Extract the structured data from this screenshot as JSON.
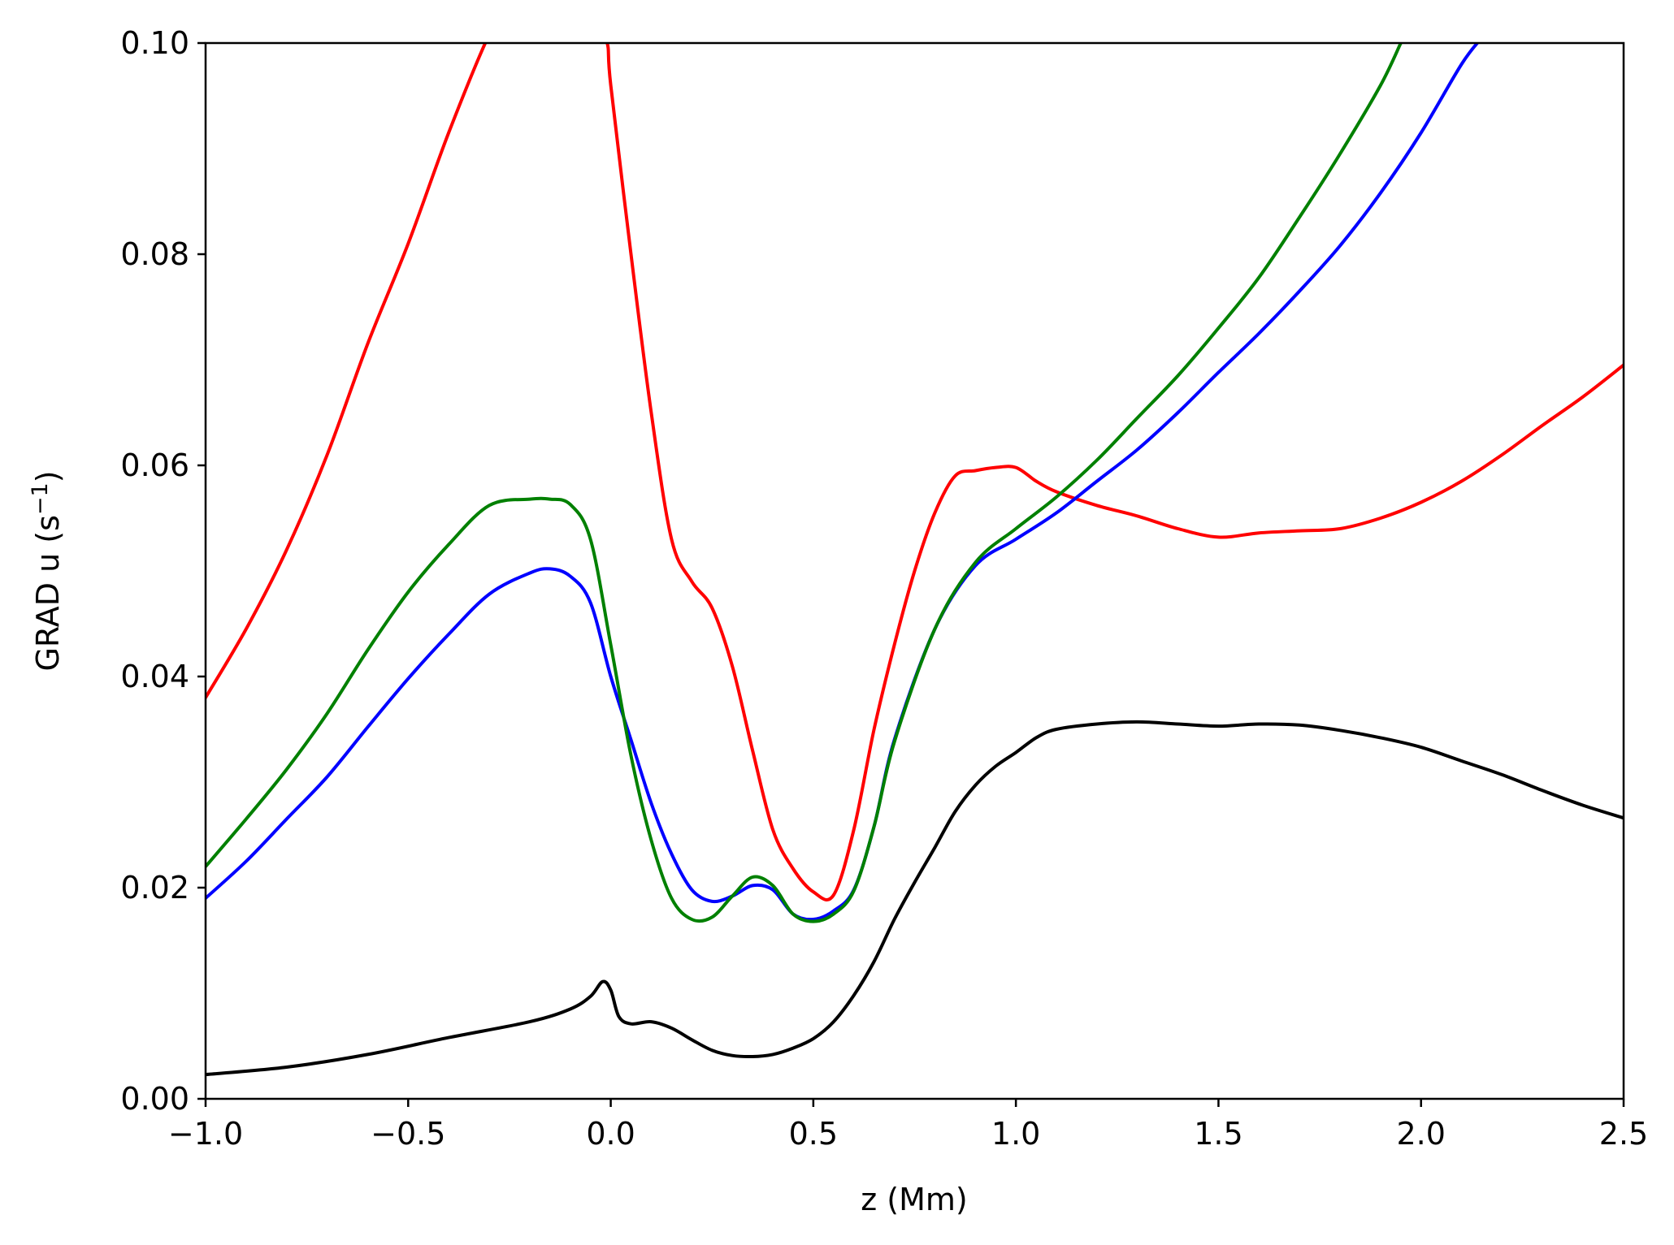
{
  "chart_data": {
    "type": "line",
    "title": "",
    "xlabel": "z (Mm)",
    "ylabel_main": "GRAD u (s",
    "ylabel_sup": "−1",
    "ylabel_close": ")",
    "xlim": [
      -1.0,
      2.5
    ],
    "ylim": [
      0.0,
      0.1
    ],
    "grid": false,
    "x_ticks": [
      {
        "value": -1.0,
        "label": "−1.0"
      },
      {
        "value": -0.5,
        "label": "−0.5"
      },
      {
        "value": 0.0,
        "label": "0.0"
      },
      {
        "value": 0.5,
        "label": "0.5"
      },
      {
        "value": 1.0,
        "label": "1.0"
      },
      {
        "value": 1.5,
        "label": "1.5"
      },
      {
        "value": 2.0,
        "label": "2.0"
      },
      {
        "value": 2.5,
        "label": "2.5"
      }
    ],
    "y_ticks": [
      {
        "value": 0.0,
        "label": "0.00"
      },
      {
        "value": 0.02,
        "label": "0.02"
      },
      {
        "value": 0.04,
        "label": "0.04"
      },
      {
        "value": 0.06,
        "label": "0.06"
      },
      {
        "value": 0.08,
        "label": "0.08"
      },
      {
        "value": 0.1,
        "label": "0.10"
      }
    ],
    "series": [
      {
        "color": "#ff0000",
        "x": [
          -1.0,
          -0.9,
          -0.8,
          -0.7,
          -0.6,
          -0.5,
          -0.4,
          -0.3,
          -0.25,
          -0.2,
          -0.15,
          -0.1,
          -0.05,
          -0.01,
          0.0,
          0.05,
          0.1,
          0.15,
          0.2,
          0.25,
          0.3,
          0.35,
          0.4,
          0.45,
          0.5,
          0.55,
          0.6,
          0.65,
          0.7,
          0.75,
          0.8,
          0.85,
          0.9,
          0.95,
          1.0,
          1.05,
          1.1,
          1.2,
          1.3,
          1.4,
          1.5,
          1.6,
          1.7,
          1.8,
          1.9,
          2.0,
          2.1,
          2.2,
          2.3,
          2.4,
          2.5
        ],
        "y": [
          0.038,
          0.0445,
          0.052,
          0.061,
          0.0715,
          0.081,
          0.0915,
          0.1008,
          0.1035,
          0.105,
          0.1055,
          0.105,
          0.103,
          0.1002,
          0.096,
          0.08,
          0.065,
          0.053,
          0.049,
          0.0465,
          0.041,
          0.033,
          0.0255,
          0.0218,
          0.0196,
          0.0193,
          0.0255,
          0.035,
          0.043,
          0.05,
          0.0555,
          0.059,
          0.0595,
          0.0598,
          0.0598,
          0.0585,
          0.0575,
          0.0562,
          0.0552,
          0.054,
          0.0532,
          0.0536,
          0.0538,
          0.054,
          0.055,
          0.0565,
          0.0585,
          0.061,
          0.0638,
          0.0665,
          0.0695
        ]
      },
      {
        "color": "#0000ff",
        "x": [
          -1.0,
          -0.9,
          -0.8,
          -0.7,
          -0.6,
          -0.5,
          -0.4,
          -0.3,
          -0.2,
          -0.15,
          -0.1,
          -0.05,
          0.0,
          0.05,
          0.1,
          0.15,
          0.2,
          0.25,
          0.3,
          0.35,
          0.4,
          0.45,
          0.5,
          0.55,
          0.6,
          0.65,
          0.7,
          0.8,
          0.9,
          1.0,
          1.1,
          1.2,
          1.3,
          1.4,
          1.5,
          1.6,
          1.7,
          1.8,
          1.9,
          2.0,
          2.1,
          2.15
        ],
        "y": [
          0.019,
          0.0225,
          0.0265,
          0.0305,
          0.0352,
          0.0398,
          0.044,
          0.0478,
          0.0498,
          0.0502,
          0.0495,
          0.047,
          0.04,
          0.034,
          0.028,
          0.0232,
          0.0198,
          0.0187,
          0.0192,
          0.0202,
          0.0198,
          0.0175,
          0.017,
          0.0178,
          0.0198,
          0.0258,
          0.034,
          0.0445,
          0.0505,
          0.053,
          0.0555,
          0.0585,
          0.0615,
          0.065,
          0.0688,
          0.0725,
          0.0765,
          0.0808,
          0.0858,
          0.0915,
          0.098,
          0.1005
        ]
      },
      {
        "color": "#008000",
        "x": [
          -1.0,
          -0.9,
          -0.8,
          -0.7,
          -0.6,
          -0.5,
          -0.4,
          -0.3,
          -0.2,
          -0.15,
          -0.1,
          -0.05,
          0.0,
          0.05,
          0.1,
          0.15,
          0.2,
          0.25,
          0.3,
          0.35,
          0.4,
          0.45,
          0.5,
          0.55,
          0.6,
          0.65,
          0.7,
          0.8,
          0.9,
          1.0,
          1.1,
          1.2,
          1.3,
          1.4,
          1.5,
          1.6,
          1.7,
          1.8,
          1.9,
          1.95
        ],
        "y": [
          0.022,
          0.0265,
          0.0312,
          0.0365,
          0.0425,
          0.048,
          0.0525,
          0.0562,
          0.0568,
          0.0568,
          0.0563,
          0.053,
          0.043,
          0.0325,
          0.0245,
          0.019,
          0.017,
          0.0172,
          0.0192,
          0.021,
          0.0202,
          0.0175,
          0.0168,
          0.0175,
          0.0197,
          0.0258,
          0.0338,
          0.0445,
          0.0508,
          0.054,
          0.057,
          0.0605,
          0.0645,
          0.0685,
          0.073,
          0.0778,
          0.0835,
          0.0895,
          0.096,
          0.1
        ]
      },
      {
        "color": "#000000",
        "x": [
          -1.0,
          -0.8,
          -0.6,
          -0.4,
          -0.2,
          -0.1,
          -0.05,
          -0.02,
          0.0,
          0.02,
          0.05,
          0.1,
          0.15,
          0.2,
          0.25,
          0.3,
          0.35,
          0.4,
          0.45,
          0.5,
          0.55,
          0.6,
          0.65,
          0.7,
          0.75,
          0.8,
          0.85,
          0.9,
          0.95,
          1.0,
          1.05,
          1.1,
          1.2,
          1.3,
          1.4,
          1.5,
          1.6,
          1.7,
          1.8,
          1.9,
          2.0,
          2.1,
          2.2,
          2.3,
          2.4,
          2.5
        ],
        "y": [
          0.0023,
          0.003,
          0.0042,
          0.0058,
          0.0073,
          0.0085,
          0.0097,
          0.0111,
          0.0103,
          0.0078,
          0.0071,
          0.0073,
          0.0067,
          0.0056,
          0.0046,
          0.0041,
          0.004,
          0.0042,
          0.0048,
          0.0057,
          0.0073,
          0.0098,
          0.013,
          0.017,
          0.0205,
          0.0238,
          0.0272,
          0.0297,
          0.0315,
          0.0328,
          0.0342,
          0.035,
          0.0355,
          0.0357,
          0.0355,
          0.0353,
          0.0355,
          0.0354,
          0.0349,
          0.0342,
          0.0333,
          0.032,
          0.0307,
          0.0292,
          0.0278,
          0.0266
        ]
      }
    ]
  }
}
